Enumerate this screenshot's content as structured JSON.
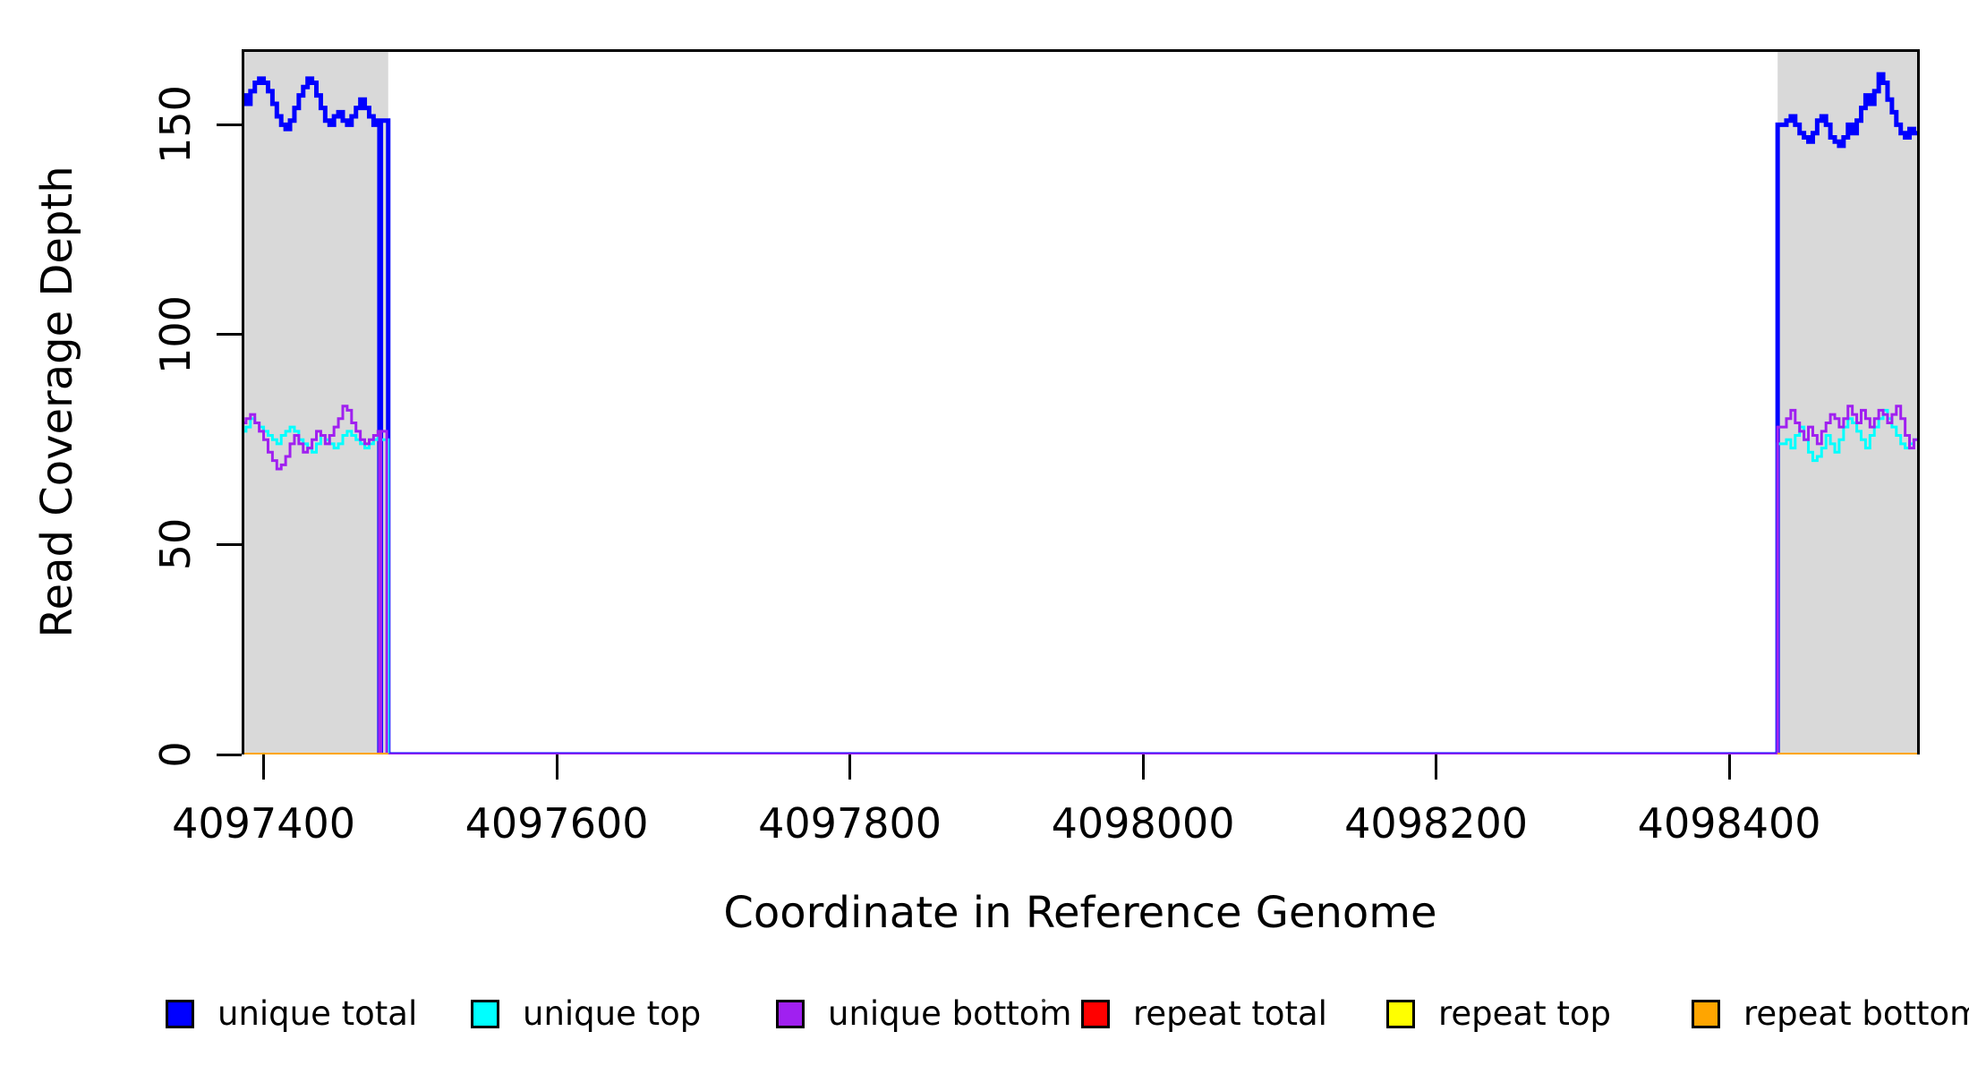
{
  "chart_data": {
    "type": "line",
    "title": "",
    "xlabel": "Coordinate in Reference Genome",
    "ylabel": "Read Coverage Depth",
    "xlim": [
      4097385,
      4098530
    ],
    "ylim": [
      0,
      168
    ],
    "grid": "off",
    "legend_position": "bottom-horizontal",
    "x_ticks": [
      {
        "value": 4097400,
        "label": "4097400"
      },
      {
        "value": 4097600,
        "label": "4097600"
      },
      {
        "value": 4097800,
        "label": "4097800"
      },
      {
        "value": 4098000,
        "label": "4098000"
      },
      {
        "value": 4098200,
        "label": "4098200"
      },
      {
        "value": 4098400,
        "label": "4098400"
      }
    ],
    "y_ticks": [
      {
        "value": 0,
        "label": "0"
      },
      {
        "value": 50,
        "label": "50"
      },
      {
        "value": 100,
        "label": "100"
      },
      {
        "value": 150,
        "label": "150"
      }
    ],
    "shaded_regions": [
      {
        "x0": 4097385,
        "x1": 4097485,
        "color": "#D9D9D9"
      },
      {
        "x0": 4098433,
        "x1": 4098530,
        "color": "#D9D9D9"
      }
    ],
    "legend": [
      {
        "label": "unique total",
        "color": "#0000FF"
      },
      {
        "label": "unique top",
        "color": "#00FFFF"
      },
      {
        "label": "unique bottom",
        "color": "#A020F0"
      },
      {
        "label": "repeat total",
        "color": "#FF0000"
      },
      {
        "label": "repeat top",
        "color": "#FFFF00"
      },
      {
        "label": "repeat bottom",
        "color": "#FFA500"
      }
    ],
    "series": [
      {
        "name": "unique total",
        "color": "#0000FF",
        "width": 5,
        "segments": [
          [
            [
              4097385,
              157
            ],
            [
              4097388,
              155
            ],
            [
              4097391,
              158
            ],
            [
              4097394,
              160
            ],
            [
              4097397,
              161
            ],
            [
              4097400,
              160
            ],
            [
              4097403,
              158
            ],
            [
              4097406,
              155
            ],
            [
              4097409,
              152
            ],
            [
              4097412,
              150
            ],
            [
              4097415,
              149
            ],
            [
              4097418,
              151
            ],
            [
              4097421,
              154
            ],
            [
              4097424,
              157
            ],
            [
              4097427,
              159
            ],
            [
              4097430,
              161
            ],
            [
              4097433,
              160
            ],
            [
              4097436,
              157
            ],
            [
              4097439,
              154
            ],
            [
              4097442,
              151
            ],
            [
              4097445,
              150
            ],
            [
              4097448,
              152
            ],
            [
              4097451,
              153
            ],
            [
              4097454,
              151
            ],
            [
              4097457,
              150
            ],
            [
              4097460,
              152
            ],
            [
              4097463,
              154
            ],
            [
              4097466,
              156
            ],
            [
              4097469,
              154
            ],
            [
              4097472,
              152
            ],
            [
              4097475,
              150
            ],
            [
              4097478,
              151
            ],
            [
              4097479,
              0
            ],
            [
              4097480,
              151
            ],
            [
              4097485,
              0
            ],
            [
              4098433,
              0
            ],
            [
              4098433,
              150
            ],
            [
              4098436,
              150
            ],
            [
              4098439,
              151
            ],
            [
              4098442,
              152
            ],
            [
              4098445,
              150
            ],
            [
              4098448,
              148
            ],
            [
              4098451,
              147
            ],
            [
              4098454,
              146
            ],
            [
              4098457,
              148
            ],
            [
              4098460,
              151
            ],
            [
              4098463,
              152
            ],
            [
              4098466,
              150
            ],
            [
              4098469,
              147
            ],
            [
              4098472,
              146
            ],
            [
              4098475,
              145
            ],
            [
              4098478,
              147
            ],
            [
              4098481,
              150
            ],
            [
              4098484,
              148
            ],
            [
              4098487,
              151
            ],
            [
              4098490,
              154
            ],
            [
              4098493,
              157
            ],
            [
              4098496,
              155
            ],
            [
              4098499,
              158
            ],
            [
              4098502,
              162
            ],
            [
              4098505,
              160
            ],
            [
              4098508,
              156
            ],
            [
              4098511,
              153
            ],
            [
              4098514,
              150
            ],
            [
              4098517,
              148
            ],
            [
              4098520,
              147
            ],
            [
              4098523,
              149
            ],
            [
              4098526,
              148
            ],
            [
              4098530,
              148
            ]
          ]
        ]
      },
      {
        "name": "unique top",
        "color": "#00FFFF",
        "width": 3,
        "segments": [
          [
            [
              4097385,
              77
            ],
            [
              4097388,
              78
            ],
            [
              4097391,
              80
            ],
            [
              4097394,
              79
            ],
            [
              4097397,
              78
            ],
            [
              4097400,
              77
            ],
            [
              4097403,
              76
            ],
            [
              4097406,
              75
            ],
            [
              4097409,
              74
            ],
            [
              4097412,
              76
            ],
            [
              4097415,
              77
            ],
            [
              4097418,
              78
            ],
            [
              4097421,
              77
            ],
            [
              4097424,
              75
            ],
            [
              4097427,
              74
            ],
            [
              4097430,
              73
            ],
            [
              4097433,
              72
            ],
            [
              4097436,
              74
            ],
            [
              4097439,
              76
            ],
            [
              4097442,
              75
            ],
            [
              4097445,
              74
            ],
            [
              4097448,
              73
            ],
            [
              4097451,
              74
            ],
            [
              4097454,
              76
            ],
            [
              4097457,
              77
            ],
            [
              4097460,
              76
            ],
            [
              4097463,
              75
            ],
            [
              4097466,
              74
            ],
            [
              4097469,
              73
            ],
            [
              4097472,
              74
            ],
            [
              4097475,
              75
            ],
            [
              4097478,
              76
            ],
            [
              4097479,
              0
            ],
            [
              4097480,
              75
            ],
            [
              4097485,
              0
            ],
            [
              4098433,
              0
            ],
            [
              4098433,
              74
            ],
            [
              4098436,
              74
            ],
            [
              4098439,
              75
            ],
            [
              4098442,
              73
            ],
            [
              4098445,
              76
            ],
            [
              4098448,
              78
            ],
            [
              4098451,
              75
            ],
            [
              4098454,
              72
            ],
            [
              4098457,
              70
            ],
            [
              4098460,
              71
            ],
            [
              4098463,
              73
            ],
            [
              4098466,
              76
            ],
            [
              4098469,
              74
            ],
            [
              4098472,
              72
            ],
            [
              4098475,
              75
            ],
            [
              4098478,
              78
            ],
            [
              4098481,
              80
            ],
            [
              4098484,
              79
            ],
            [
              4098487,
              77
            ],
            [
              4098490,
              75
            ],
            [
              4098493,
              73
            ],
            [
              4098496,
              76
            ],
            [
              4098499,
              78
            ],
            [
              4098502,
              80
            ],
            [
              4098505,
              82
            ],
            [
              4098508,
              80
            ],
            [
              4098511,
              78
            ],
            [
              4098514,
              76
            ],
            [
              4098517,
              74
            ],
            [
              4098520,
              73
            ],
            [
              4098523,
              74
            ],
            [
              4098526,
              75
            ],
            [
              4098530,
              75
            ]
          ]
        ]
      },
      {
        "name": "unique bottom",
        "color": "#A020F0",
        "width": 3,
        "segments": [
          [
            [
              4097385,
              79
            ],
            [
              4097388,
              80
            ],
            [
              4097391,
              81
            ],
            [
              4097394,
              79
            ],
            [
              4097397,
              77
            ],
            [
              4097400,
              75
            ],
            [
              4097403,
              72
            ],
            [
              4097406,
              70
            ],
            [
              4097409,
              68
            ],
            [
              4097412,
              69
            ],
            [
              4097415,
              71
            ],
            [
              4097418,
              74
            ],
            [
              4097421,
              76
            ],
            [
              4097424,
              74
            ],
            [
              4097427,
              72
            ],
            [
              4097430,
              73
            ],
            [
              4097433,
              75
            ],
            [
              4097436,
              77
            ],
            [
              4097439,
              76
            ],
            [
              4097442,
              74
            ],
            [
              4097445,
              76
            ],
            [
              4097448,
              78
            ],
            [
              4097451,
              80
            ],
            [
              4097454,
              83
            ],
            [
              4097457,
              82
            ],
            [
              4097460,
              79
            ],
            [
              4097463,
              77
            ],
            [
              4097466,
              75
            ],
            [
              4097469,
              74
            ],
            [
              4097472,
              75
            ],
            [
              4097475,
              76
            ],
            [
              4097478,
              77
            ],
            [
              4097479,
              0
            ],
            [
              4097480,
              77
            ],
            [
              4097484,
              0
            ],
            [
              4098433,
              0
            ],
            [
              4098433,
              78
            ],
            [
              4098436,
              78
            ],
            [
              4098439,
              80
            ],
            [
              4098442,
              82
            ],
            [
              4098445,
              79
            ],
            [
              4098448,
              77
            ],
            [
              4098451,
              75
            ],
            [
              4098454,
              78
            ],
            [
              4098457,
              76
            ],
            [
              4098460,
              74
            ],
            [
              4098463,
              77
            ],
            [
              4098466,
              79
            ],
            [
              4098469,
              81
            ],
            [
              4098472,
              80
            ],
            [
              4098475,
              78
            ],
            [
              4098478,
              80
            ],
            [
              4098481,
              83
            ],
            [
              4098484,
              81
            ],
            [
              4098487,
              79
            ],
            [
              4098490,
              82
            ],
            [
              4098493,
              80
            ],
            [
              4098496,
              78
            ],
            [
              4098499,
              80
            ],
            [
              4098502,
              82
            ],
            [
              4098505,
              81
            ],
            [
              4098508,
              79
            ],
            [
              4098511,
              81
            ],
            [
              4098514,
              83
            ],
            [
              4098517,
              80
            ],
            [
              4098520,
              76
            ],
            [
              4098523,
              73
            ],
            [
              4098526,
              75
            ],
            [
              4098530,
              75
            ]
          ]
        ]
      },
      {
        "name": "repeat total",
        "color": "#FF0000",
        "width": 3,
        "segments": [
          [
            [
              4097385,
              0
            ],
            [
              4097485,
              0
            ]
          ],
          [
            [
              4098433,
              0
            ],
            [
              4098530,
              0
            ]
          ]
        ]
      },
      {
        "name": "repeat top",
        "color": "#FFFF00",
        "width": 3,
        "segments": [
          [
            [
              4097385,
              0
            ],
            [
              4097485,
              0
            ]
          ],
          [
            [
              4098433,
              0
            ],
            [
              4098530,
              0
            ]
          ]
        ]
      },
      {
        "name": "repeat bottom",
        "color": "#FFA500",
        "width": 4,
        "segments": [
          [
            [
              4097385,
              0
            ],
            [
              4097485,
              0
            ]
          ],
          [
            [
              4098433,
              0
            ],
            [
              4098530,
              0
            ]
          ]
        ]
      }
    ]
  }
}
